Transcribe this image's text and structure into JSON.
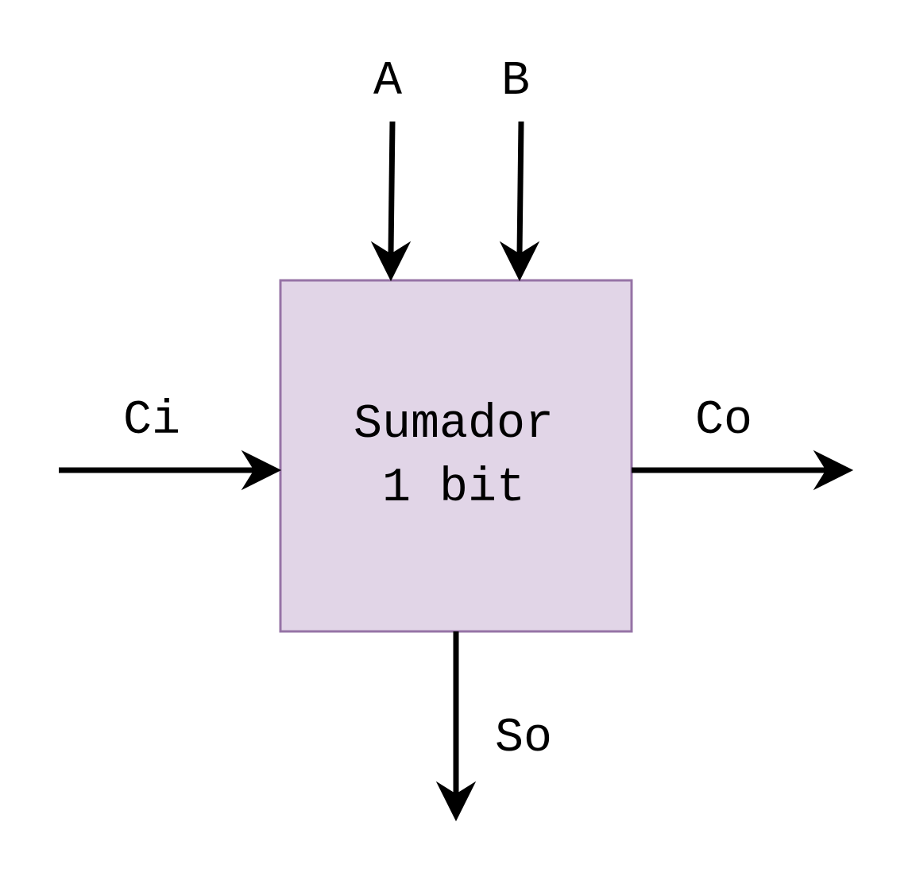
{
  "block": {
    "line1": "Sumador",
    "line2": "1 bit",
    "fill_color": "#e1d5e7",
    "border_color": "#9673a6"
  },
  "inputs": {
    "a": "A",
    "b": "B",
    "carry_in": "Ci"
  },
  "outputs": {
    "carry_out": "Co",
    "sum_out": "So"
  },
  "arrow_color": "#000000"
}
